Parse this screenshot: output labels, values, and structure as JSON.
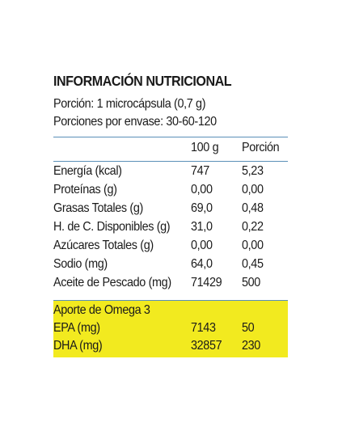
{
  "title": "INFORMACIÓN NUTRICIONAL",
  "portion": "Porción: 1 microcápsula (0,7 g)",
  "portions_per_container": "Porciones por envase: 30-60-120",
  "columns": [
    "",
    "100 g",
    "Porción"
  ],
  "rows": [
    [
      "Energía (kcal)",
      "747",
      "5,23"
    ],
    [
      "Proteínas (g)",
      "0,00",
      "0,00"
    ],
    [
      "Grasas Totales (g)",
      "69,0",
      "0,48"
    ],
    [
      "H. de C. Disponibles (g)",
      "31,0",
      "0,22"
    ],
    [
      "Azúcares Totales (g)",
      "0,00",
      "0,00"
    ],
    [
      "Sodio (mg)",
      "64,0",
      "0,45"
    ],
    [
      "Aceite de Pescado (mg)",
      "71429",
      "500"
    ]
  ],
  "omega": {
    "heading": "Aporte de Omega 3",
    "rows": [
      [
        "EPA (mg)",
        "7143",
        "50"
      ],
      [
        "DHA (mg)",
        "32857",
        "230"
      ]
    ]
  },
  "colors": {
    "highlight": "#f2ea1f",
    "rule": "#5a8fb8",
    "text": "#1a1a1a"
  }
}
